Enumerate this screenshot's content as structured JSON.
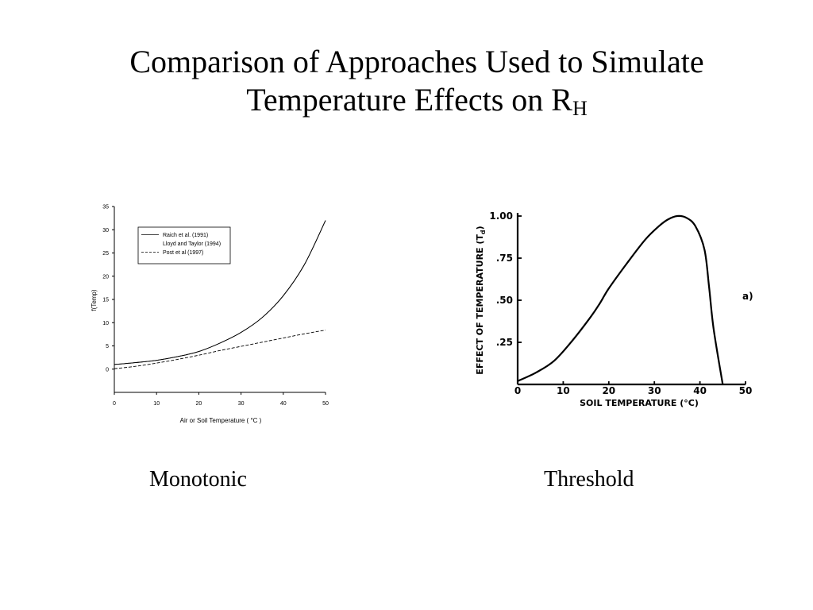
{
  "slide": {
    "title_line1": "Comparison of Approaches Used to Simulate",
    "title_line2_main": "Temperature Effects on R",
    "title_line2_sub": "H",
    "caption_left": "Monotonic",
    "caption_right": "Threshold"
  },
  "chart_data": [
    {
      "type": "line",
      "xlabel": "Air or Soil Temperature ( °C )",
      "ylabel": "f(Temp)",
      "xlim": [
        0,
        50
      ],
      "ylim": [
        -5,
        35
      ],
      "x_ticks": [
        "0",
        "10",
        "20",
        "30",
        "40",
        "50"
      ],
      "y_ticks": [
        "0",
        "5",
        "10",
        "15",
        "20",
        "25",
        "30",
        "35"
      ],
      "legend_position": "top-left",
      "grid": false,
      "series": [
        {
          "name": "Raich et al. (1991)",
          "style": "solid",
          "x": [
            0,
            5,
            10,
            15,
            20,
            25,
            30,
            35,
            40,
            45,
            50
          ],
          "y": [
            1.0,
            1.4,
            1.9,
            2.7,
            3.8,
            5.6,
            7.9,
            11.1,
            15.8,
            22.5,
            32.0
          ]
        },
        {
          "name": "Lloyd and Taylor (1994)",
          "style": "solid",
          "x": [
            0,
            5,
            10,
            15,
            20,
            25,
            30,
            35,
            40,
            45,
            50
          ],
          "y": [
            1.0,
            1.4,
            1.9,
            2.7,
            3.8,
            5.6,
            7.9,
            11.1,
            15.8,
            22.5,
            32.0
          ]
        },
        {
          "name": "Post et al (1997)",
          "style": "dashed",
          "x": [
            0,
            5,
            10,
            15,
            20,
            25,
            30,
            35,
            40,
            45,
            50
          ],
          "y": [
            0.1,
            0.6,
            1.3,
            2.1,
            3.0,
            4.0,
            4.9,
            5.8,
            6.7,
            7.6,
            8.4
          ]
        }
      ]
    },
    {
      "type": "line",
      "xlabel": "SOIL TEMPERATURE (°C)",
      "ylabel_main": "EFFECT OF TEMPERATURE (T",
      "ylabel_sub": "d",
      "ylabel_close": ")",
      "xlim": [
        0,
        50
      ],
      "ylim": [
        0,
        1.0
      ],
      "x_ticks": [
        "0",
        "10",
        "20",
        "30",
        "40",
        "50"
      ],
      "y_ticks": [
        ".25",
        ".50",
        ".75",
        "1.00"
      ],
      "annotation": "a)",
      "series": [
        {
          "x": [
            0,
            4,
            8,
            12,
            16,
            18,
            20,
            24,
            28,
            31,
            33,
            35,
            37,
            39,
            41,
            42,
            43,
            45
          ],
          "y": [
            0.02,
            0.07,
            0.14,
            0.26,
            0.4,
            0.48,
            0.57,
            0.72,
            0.86,
            0.94,
            0.98,
            1.0,
            0.99,
            0.94,
            0.8,
            0.58,
            0.33,
            0.0
          ]
        }
      ]
    }
  ]
}
